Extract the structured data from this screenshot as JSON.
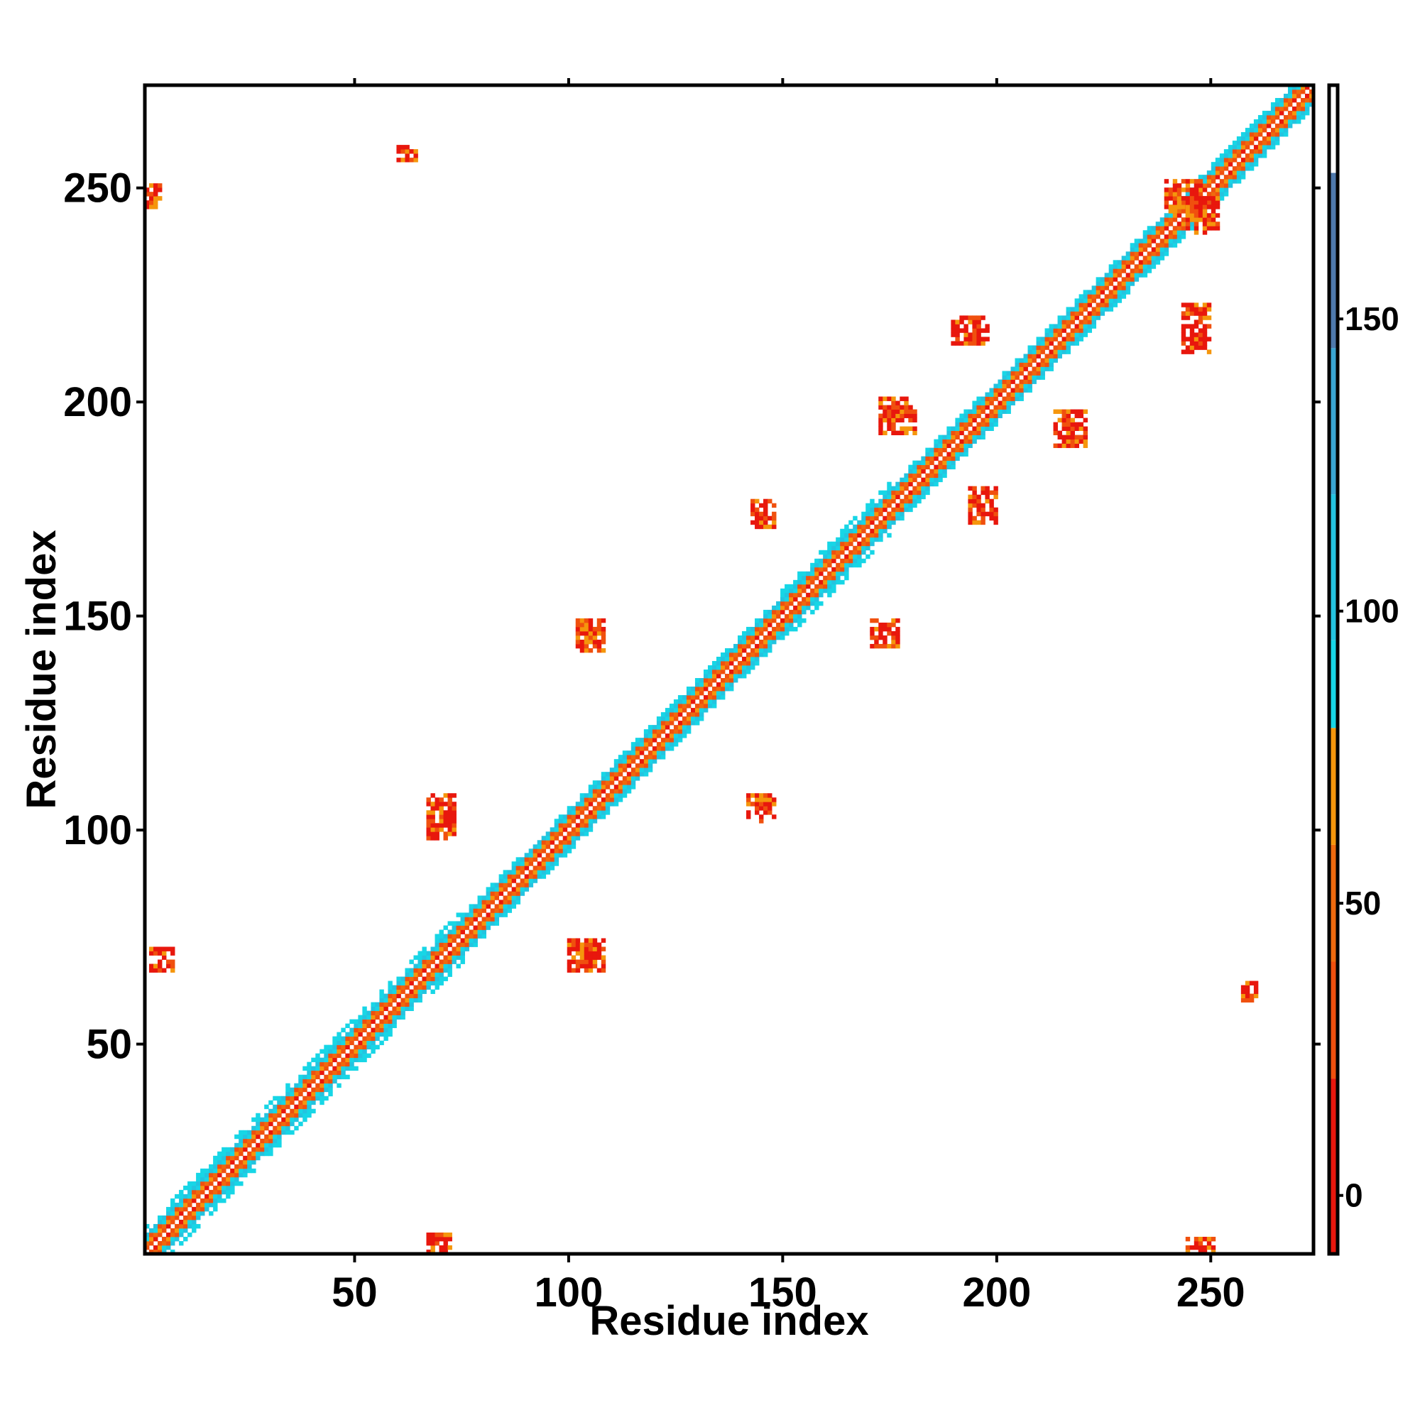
{
  "chart_data": {
    "type": "heatmap",
    "xlabel": "Residue index",
    "ylabel": "Residue index",
    "xlim": [
      1,
      274
    ],
    "ylim": [
      1,
      274
    ],
    "x_ticks": [
      50,
      100,
      150,
      200,
      250
    ],
    "y_ticks": [
      50,
      100,
      150,
      200,
      250
    ],
    "x_tick_labels": [
      "50",
      "100",
      "150",
      "200",
      "250"
    ],
    "y_tick_labels": [
      "50",
      "100",
      "150",
      "200",
      "250"
    ],
    "colorbar": {
      "range": [
        -10,
        190
      ],
      "ticks": [
        0,
        50,
        100,
        150
      ],
      "tick_labels": [
        "0",
        "50",
        "100",
        "150"
      ],
      "bands": [
        {
          "from": -10,
          "to": 20,
          "color": "#e8170d"
        },
        {
          "from": 20,
          "to": 40,
          "color": "#f0500e"
        },
        {
          "from": 40,
          "to": 60,
          "color": "#ef6a0e"
        },
        {
          "from": 60,
          "to": 80,
          "color": "#f5960c"
        },
        {
          "from": 80,
          "to": 95,
          "color": "#17d6e6"
        },
        {
          "from": 95,
          "to": 120,
          "color": "#24c3df"
        },
        {
          "from": 120,
          "to": 145,
          "color": "#39a5d2"
        },
        {
          "from": 145,
          "to": 175,
          "color": "#4e79ac"
        },
        {
          "from": 175,
          "to": 190,
          "color": "#ffffff"
        }
      ]
    },
    "diagonal_segments": [
      {
        "from": 1,
        "to": 75,
        "halfwidth": 6
      },
      {
        "from": 75,
        "to": 100,
        "halfwidth": 5
      },
      {
        "from": 100,
        "to": 150,
        "halfwidth": 5
      },
      {
        "from": 150,
        "to": 175,
        "halfwidth": 6
      },
      {
        "from": 175,
        "to": 274,
        "halfwidth": 5
      }
    ],
    "contact_patches": [
      {
        "x": [
          100,
          108
        ],
        "y": [
          67,
          74
        ],
        "value": 30
      },
      {
        "x": [
          67,
          73
        ],
        "y": [
          98,
          108
        ],
        "value": 30
      },
      {
        "x": [
          142,
          148
        ],
        "y": [
          102,
          108
        ],
        "value": 30
      },
      {
        "x": [
          102,
          108
        ],
        "y": [
          142,
          149
        ],
        "value": 30
      },
      {
        "x": [
          171,
          177
        ],
        "y": [
          143,
          149
        ],
        "value": 30
      },
      {
        "x": [
          143,
          148
        ],
        "y": [
          171,
          177
        ],
        "value": 30
      },
      {
        "x": [
          194,
          200
        ],
        "y": [
          172,
          180
        ],
        "value": 30
      },
      {
        "x": [
          173,
          181
        ],
        "y": [
          193,
          201
        ],
        "value": 30
      },
      {
        "x": [
          190,
          198
        ],
        "y": [
          214,
          220
        ],
        "value": 30
      },
      {
        "x": [
          214,
          221
        ],
        "y": [
          190,
          198
        ],
        "value": 30
      },
      {
        "x": [
          240,
          248
        ],
        "y": [
          245,
          252
        ],
        "value": 30
      },
      {
        "x": [
          245,
          252
        ],
        "y": [
          240,
          248
        ],
        "value": 30
      },
      {
        "x": [
          244,
          250
        ],
        "y": [
          212,
          223
        ],
        "value": 30
      },
      {
        "x": [
          1,
          4
        ],
        "y": [
          246,
          251
        ],
        "value": 30
      },
      {
        "x": [
          2,
          7
        ],
        "y": [
          67,
          72
        ],
        "value": 30
      },
      {
        "x": [
          67,
          72
        ],
        "y": [
          1,
          5
        ],
        "value": 30
      },
      {
        "x": [
          245,
          251
        ],
        "y": [
          1,
          4
        ],
        "value": 30
      },
      {
        "x": [
          60,
          64
        ],
        "y": [
          257,
          260
        ],
        "value": 30
      },
      {
        "x": [
          258,
          261
        ],
        "y": [
          60,
          64
        ],
        "value": 30
      }
    ]
  }
}
